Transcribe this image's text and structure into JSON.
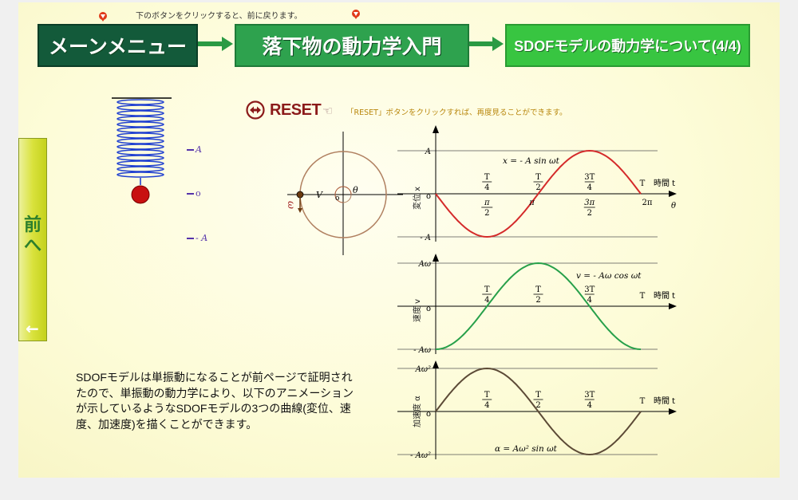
{
  "hint_top": "下のボタンをクリックすると、前に戻ります。",
  "nav": {
    "main_menu": "メーンメニュー",
    "intro": "落下物の動力学入門",
    "current": "SDOFモデルの動力学について(4/4)"
  },
  "prev_button": {
    "label_line1": "前",
    "label_line2": "へ",
    "arrow": "←"
  },
  "reset": {
    "label": "RESET",
    "hint": "「RESET」ボタンをクリックすれば、再度見ることができます。"
  },
  "spring": {
    "label_pos": "A",
    "label_zero": "o",
    "label_neg": "- A"
  },
  "circle": {
    "label_theta": "θ",
    "label_omega": "ω",
    "label_v": "V",
    "label_o": "o"
  },
  "description": "SDOFモデルは単振動になることが前ページで証明されたので、単振動の動力学により、以下のアニメーションが示しているようなSDOFモデルの3つの曲線(変位、速度、加速度)を描くことができます。",
  "chart_data": [
    {
      "type": "line",
      "ylabel": "変位  x",
      "xlabel": "時間  t",
      "formula": "x = - A sin ωt",
      "y_ticks": [
        "A",
        "o",
        "- A"
      ],
      "x_ticks_time": [
        "T/4",
        "T/2",
        "3T/4",
        "T"
      ],
      "x_ticks_angle": [
        "π/2",
        "π",
        "3π/2",
        "2π"
      ],
      "x_angle_label": "θ",
      "color": "#d42a2a",
      "x": [
        0,
        0.25,
        0.5,
        0.75,
        1.0
      ],
      "y": [
        0,
        -1,
        0,
        1,
        0
      ]
    },
    {
      "type": "line",
      "ylabel": "速度  v",
      "xlabel": "時間  t",
      "formula": "v = - Aω cos ωt",
      "y_ticks": [
        "Aω",
        "o",
        "- Aω"
      ],
      "x_ticks_time": [
        "T/4",
        "T/2",
        "3T/4",
        "T"
      ],
      "color": "#27a04a",
      "x": [
        0,
        0.25,
        0.5,
        0.75,
        1.0
      ],
      "y": [
        -1,
        0,
        1,
        0,
        -1
      ]
    },
    {
      "type": "line",
      "ylabel": "加速度  α",
      "xlabel": "時間  t",
      "formula": "α = Aω² sin ωt",
      "y_ticks": [
        "Aω²",
        "o",
        "- Aω²"
      ],
      "x_ticks_time": [
        "T/4",
        "T/2",
        "3T/4",
        "T"
      ],
      "color": "#5c4a36",
      "x": [
        0,
        0.25,
        0.5,
        0.75,
        1.0
      ],
      "y": [
        0,
        1,
        0,
        -1,
        0
      ]
    }
  ]
}
